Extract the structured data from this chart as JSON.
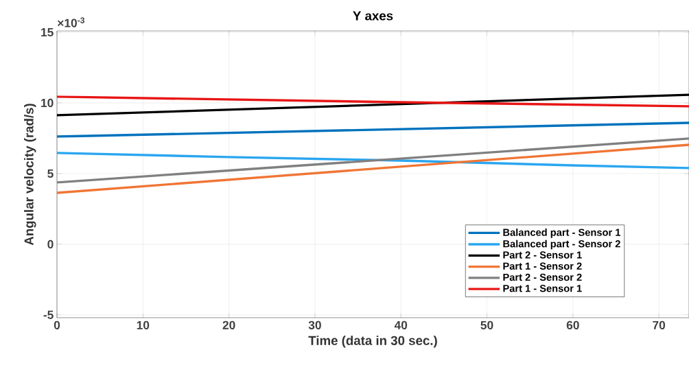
{
  "chart_data": {
    "type": "line",
    "title": "Y axes",
    "xlabel": "Time (data in 30 sec.)",
    "ylabel": "Angular velocity (rad/s)",
    "annotations": [
      "×10$^{-3}$"
    ],
    "xlim": [
      0,
      73.5
    ],
    "ylim": [
      -5.2,
      15.1
    ],
    "xticks": [
      0,
      10,
      20,
      30,
      40,
      50,
      60,
      70
    ],
    "yticks": [
      -5,
      0,
      5,
      10,
      15
    ],
    "grid": true,
    "legend": "bottom right",
    "line_style": "solid",
    "marker": "none",
    "series": [
      {
        "name": "Balanced part - Sensor 1",
        "color": "#0072bd",
        "x": [
          0,
          73.5
        ],
        "values": [
          7.62,
          8.59
        ]
      },
      {
        "name": "Balanced part - Sensor 2",
        "color": "#2aa6f0",
        "x": [
          0,
          20,
          40,
          60,
          73.5
        ],
        "values": [
          6.46,
          6.17,
          5.92,
          5.58,
          5.39
        ]
      },
      {
        "name": "Part 2 - Sensor 1",
        "color": "#000000",
        "x": [
          0,
          73.5
        ],
        "values": [
          9.13,
          10.58
        ]
      },
      {
        "name": "Part 1 - Sensor 2",
        "color": "#f07535",
        "x": [
          0,
          73.5
        ],
        "values": [
          3.64,
          7.04
        ]
      },
      {
        "name": "Part 2 - Sensor 2",
        "color": "#808080",
        "x": [
          0,
          73.5
        ],
        "values": [
          4.37,
          7.48
        ]
      },
      {
        "name": "Part 1 - Sensor 1",
        "color": "#e81515",
        "x": [
          0,
          40,
          73.5
        ],
        "values": [
          10.44,
          10.05,
          9.76
        ]
      }
    ]
  }
}
